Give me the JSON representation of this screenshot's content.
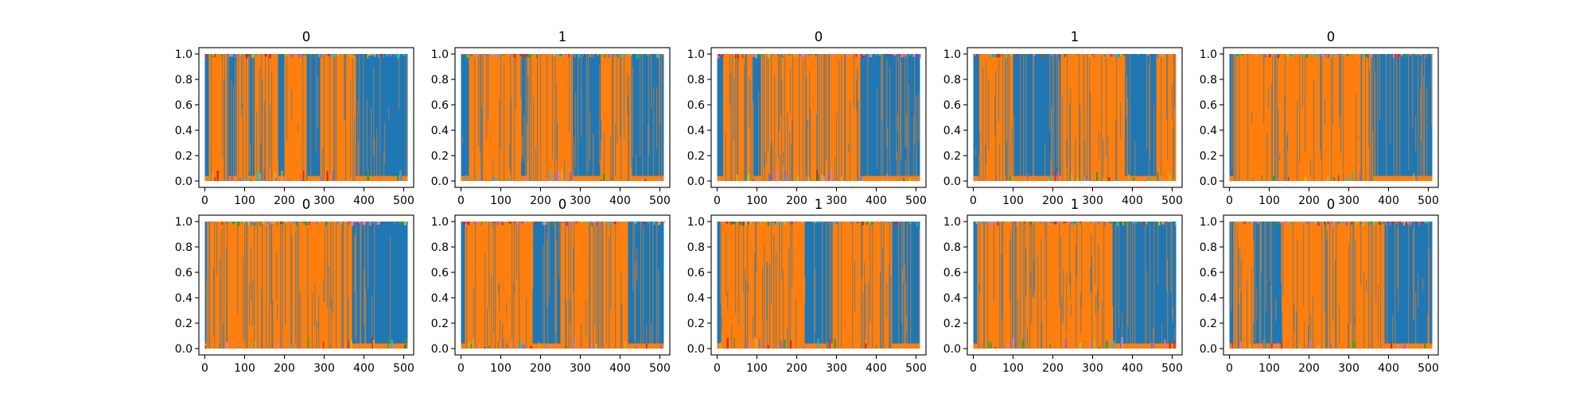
{
  "figure": {
    "layout": {
      "rows": 2,
      "cols": 5
    }
  },
  "chart_data": [
    {
      "type": "area",
      "title": "0",
      "xlim": [
        -15,
        525
      ],
      "ylim": [
        -0.05,
        1.05
      ],
      "x_ticks": [
        0,
        100,
        200,
        300,
        400,
        500
      ],
      "y_ticks": [
        0.0,
        0.2,
        0.4,
        0.6,
        0.8,
        1.0
      ],
      "x_tick_labels": [
        "0",
        "100",
        "200",
        "300",
        "400",
        "500"
      ],
      "y_tick_labels": [
        "0.0",
        "0.2",
        "0.4",
        "0.6",
        "0.8",
        "1.0"
      ],
      "grid": false,
      "legend": "none",
      "series_colors": [
        "#1f77b4",
        "#ff7f0e"
      ],
      "segments": [
        {
          "x_start": 0,
          "x_end": 10,
          "series": "blue"
        },
        {
          "x_start": 10,
          "x_end": 60,
          "series": "orange"
        },
        {
          "x_start": 60,
          "x_end": 80,
          "series": "blue"
        },
        {
          "x_start": 80,
          "x_end": 110,
          "series": "orange"
        },
        {
          "x_start": 110,
          "x_end": 125,
          "series": "blue"
        },
        {
          "x_start": 125,
          "x_end": 185,
          "series": "orange"
        },
        {
          "x_start": 185,
          "x_end": 200,
          "series": "blue"
        },
        {
          "x_start": 200,
          "x_end": 255,
          "series": "orange"
        },
        {
          "x_start": 255,
          "x_end": 290,
          "series": "blue"
        },
        {
          "x_start": 290,
          "x_end": 380,
          "series": "orange"
        },
        {
          "x_start": 380,
          "x_end": 400,
          "series": "blue"
        },
        {
          "x_start": 400,
          "x_end": 510,
          "series": "blue"
        }
      ]
    },
    {
      "type": "area",
      "title": "1",
      "xlim": [
        -15,
        525
      ],
      "ylim": [
        -0.05,
        1.05
      ],
      "x_ticks": [
        0,
        100,
        200,
        300,
        400,
        500
      ],
      "y_ticks": [
        0.0,
        0.2,
        0.4,
        0.6,
        0.8,
        1.0
      ],
      "x_tick_labels": [
        "0",
        "100",
        "200",
        "300",
        "400",
        "500"
      ],
      "y_tick_labels": [
        "0.0",
        "0.2",
        "0.4",
        "0.6",
        "0.8",
        "1.0"
      ],
      "grid": false,
      "legend": "none",
      "series_colors": [
        "#1f77b4",
        "#ff7f0e"
      ],
      "segments": [
        {
          "x_start": 0,
          "x_end": 20,
          "series": "blue"
        },
        {
          "x_start": 20,
          "x_end": 150,
          "series": "orange"
        },
        {
          "x_start": 150,
          "x_end": 165,
          "series": "blue"
        },
        {
          "x_start": 165,
          "x_end": 280,
          "series": "orange"
        },
        {
          "x_start": 280,
          "x_end": 350,
          "series": "blue"
        },
        {
          "x_start": 350,
          "x_end": 430,
          "series": "orange"
        },
        {
          "x_start": 430,
          "x_end": 510,
          "series": "blue"
        }
      ]
    },
    {
      "type": "area",
      "title": "0",
      "xlim": [
        -15,
        525
      ],
      "ylim": [
        -0.05,
        1.05
      ],
      "x_ticks": [
        0,
        100,
        200,
        300,
        400,
        500
      ],
      "y_ticks": [
        0.0,
        0.2,
        0.4,
        0.6,
        0.8,
        1.0
      ],
      "x_tick_labels": [
        "0",
        "100",
        "200",
        "300",
        "400",
        "500"
      ],
      "y_tick_labels": [
        "0.0",
        "0.2",
        "0.4",
        "0.6",
        "0.8",
        "1.0"
      ],
      "grid": false,
      "legend": "none",
      "series_colors": [
        "#1f77b4",
        "#ff7f0e"
      ],
      "segments": [
        {
          "x_start": 0,
          "x_end": 15,
          "series": "blue"
        },
        {
          "x_start": 15,
          "x_end": 90,
          "series": "orange"
        },
        {
          "x_start": 90,
          "x_end": 110,
          "series": "blue"
        },
        {
          "x_start": 110,
          "x_end": 360,
          "series": "orange"
        },
        {
          "x_start": 360,
          "x_end": 510,
          "series": "blue"
        }
      ]
    },
    {
      "type": "area",
      "title": "1",
      "xlim": [
        -15,
        525
      ],
      "ylim": [
        -0.05,
        1.05
      ],
      "x_ticks": [
        0,
        100,
        200,
        300,
        400,
        500
      ],
      "y_ticks": [
        0.0,
        0.2,
        0.4,
        0.6,
        0.8,
        1.0
      ],
      "x_tick_labels": [
        "0",
        "100",
        "200",
        "300",
        "400",
        "500"
      ],
      "y_tick_labels": [
        "0.0",
        "0.2",
        "0.4",
        "0.6",
        "0.8",
        "1.0"
      ],
      "grid": false,
      "legend": "none",
      "series_colors": [
        "#1f77b4",
        "#ff7f0e"
      ],
      "segments": [
        {
          "x_start": 0,
          "x_end": 15,
          "series": "blue"
        },
        {
          "x_start": 15,
          "x_end": 100,
          "series": "orange"
        },
        {
          "x_start": 100,
          "x_end": 220,
          "series": "blue"
        },
        {
          "x_start": 220,
          "x_end": 380,
          "series": "orange"
        },
        {
          "x_start": 380,
          "x_end": 460,
          "series": "blue"
        },
        {
          "x_start": 460,
          "x_end": 510,
          "series": "orange"
        }
      ]
    },
    {
      "type": "area",
      "title": "0",
      "xlim": [
        -15,
        525
      ],
      "ylim": [
        -0.05,
        1.05
      ],
      "x_ticks": [
        0,
        100,
        200,
        300,
        400,
        500
      ],
      "y_ticks": [
        0.0,
        0.2,
        0.4,
        0.6,
        0.8,
        1.0
      ],
      "x_tick_labels": [
        "0",
        "100",
        "200",
        "300",
        "400",
        "500"
      ],
      "y_tick_labels": [
        "0.0",
        "0.2",
        "0.4",
        "0.6",
        "0.8",
        "1.0"
      ],
      "grid": false,
      "legend": "none",
      "series_colors": [
        "#1f77b4",
        "#ff7f0e"
      ],
      "segments": [
        {
          "x_start": 0,
          "x_end": 10,
          "series": "blue"
        },
        {
          "x_start": 10,
          "x_end": 360,
          "series": "orange"
        },
        {
          "x_start": 360,
          "x_end": 510,
          "series": "blue"
        }
      ]
    },
    {
      "type": "area",
      "title": "0",
      "xlim": [
        -15,
        525
      ],
      "ylim": [
        -0.05,
        1.05
      ],
      "x_ticks": [
        0,
        100,
        200,
        300,
        400,
        500
      ],
      "y_ticks": [
        0.0,
        0.2,
        0.4,
        0.6,
        0.8,
        1.0
      ],
      "x_tick_labels": [
        "0",
        "100",
        "200",
        "300",
        "400",
        "500"
      ],
      "y_tick_labels": [
        "0.0",
        "0.2",
        "0.4",
        "0.6",
        "0.8",
        "1.0"
      ],
      "grid": false,
      "legend": "none",
      "series_colors": [
        "#1f77b4",
        "#ff7f0e"
      ],
      "segments": [
        {
          "x_start": 0,
          "x_end": 5,
          "series": "blue"
        },
        {
          "x_start": 5,
          "x_end": 370,
          "series": "orange"
        },
        {
          "x_start": 370,
          "x_end": 510,
          "series": "blue"
        }
      ]
    },
    {
      "type": "area",
      "title": "0",
      "xlim": [
        -15,
        525
      ],
      "ylim": [
        -0.05,
        1.05
      ],
      "x_ticks": [
        0,
        100,
        200,
        300,
        400,
        500
      ],
      "y_ticks": [
        0.0,
        0.2,
        0.4,
        0.6,
        0.8,
        1.0
      ],
      "x_tick_labels": [
        "0",
        "100",
        "200",
        "300",
        "400",
        "500"
      ],
      "y_tick_labels": [
        "0.0",
        "0.2",
        "0.4",
        "0.6",
        "0.8",
        "1.0"
      ],
      "grid": false,
      "legend": "none",
      "series_colors": [
        "#1f77b4",
        "#ff7f0e"
      ],
      "segments": [
        {
          "x_start": 0,
          "x_end": 10,
          "series": "blue"
        },
        {
          "x_start": 10,
          "x_end": 180,
          "series": "orange"
        },
        {
          "x_start": 180,
          "x_end": 250,
          "series": "blue"
        },
        {
          "x_start": 250,
          "x_end": 420,
          "series": "orange"
        },
        {
          "x_start": 420,
          "x_end": 510,
          "series": "blue"
        }
      ]
    },
    {
      "type": "area",
      "title": "1",
      "xlim": [
        -15,
        525
      ],
      "ylim": [
        -0.05,
        1.05
      ],
      "x_ticks": [
        0,
        100,
        200,
        300,
        400,
        500
      ],
      "y_ticks": [
        0.0,
        0.2,
        0.4,
        0.6,
        0.8,
        1.0
      ],
      "x_tick_labels": [
        "0",
        "100",
        "200",
        "300",
        "400",
        "500"
      ],
      "y_tick_labels": [
        "0.0",
        "0.2",
        "0.4",
        "0.6",
        "0.8",
        "1.0"
      ],
      "grid": false,
      "legend": "none",
      "series_colors": [
        "#1f77b4",
        "#ff7f0e"
      ],
      "segments": [
        {
          "x_start": 0,
          "x_end": 10,
          "series": "blue"
        },
        {
          "x_start": 10,
          "x_end": 220,
          "series": "orange"
        },
        {
          "x_start": 220,
          "x_end": 290,
          "series": "blue"
        },
        {
          "x_start": 290,
          "x_end": 440,
          "series": "orange"
        },
        {
          "x_start": 440,
          "x_end": 510,
          "series": "blue"
        }
      ]
    },
    {
      "type": "area",
      "title": "1",
      "xlim": [
        -15,
        525
      ],
      "ylim": [
        -0.05,
        1.05
      ],
      "x_ticks": [
        0,
        100,
        200,
        300,
        400,
        500
      ],
      "y_ticks": [
        0.0,
        0.2,
        0.4,
        0.6,
        0.8,
        1.0
      ],
      "x_tick_labels": [
        "0",
        "100",
        "200",
        "300",
        "400",
        "500"
      ],
      "y_tick_labels": [
        "0.0",
        "0.2",
        "0.4",
        "0.6",
        "0.8",
        "1.0"
      ],
      "grid": false,
      "legend": "none",
      "series_colors": [
        "#1f77b4",
        "#ff7f0e"
      ],
      "segments": [
        {
          "x_start": 0,
          "x_end": 10,
          "series": "blue"
        },
        {
          "x_start": 10,
          "x_end": 350,
          "series": "orange"
        },
        {
          "x_start": 350,
          "x_end": 510,
          "series": "blue"
        }
      ]
    },
    {
      "type": "area",
      "title": "0",
      "xlim": [
        -15,
        525
      ],
      "ylim": [
        -0.05,
        1.05
      ],
      "x_ticks": [
        0,
        100,
        200,
        300,
        400,
        500
      ],
      "y_ticks": [
        0.0,
        0.2,
        0.4,
        0.6,
        0.8,
        1.0
      ],
      "x_tick_labels": [
        "0",
        "100",
        "200",
        "300",
        "400",
        "500"
      ],
      "y_tick_labels": [
        "0.0",
        "0.2",
        "0.4",
        "0.6",
        "0.8",
        "1.0"
      ],
      "grid": false,
      "legend": "none",
      "series_colors": [
        "#1f77b4",
        "#ff7f0e"
      ],
      "segments": [
        {
          "x_start": 0,
          "x_end": 10,
          "series": "blue"
        },
        {
          "x_start": 10,
          "x_end": 60,
          "series": "orange"
        },
        {
          "x_start": 60,
          "x_end": 130,
          "series": "blue"
        },
        {
          "x_start": 130,
          "x_end": 390,
          "series": "orange"
        },
        {
          "x_start": 390,
          "x_end": 510,
          "series": "blue"
        }
      ]
    }
  ]
}
